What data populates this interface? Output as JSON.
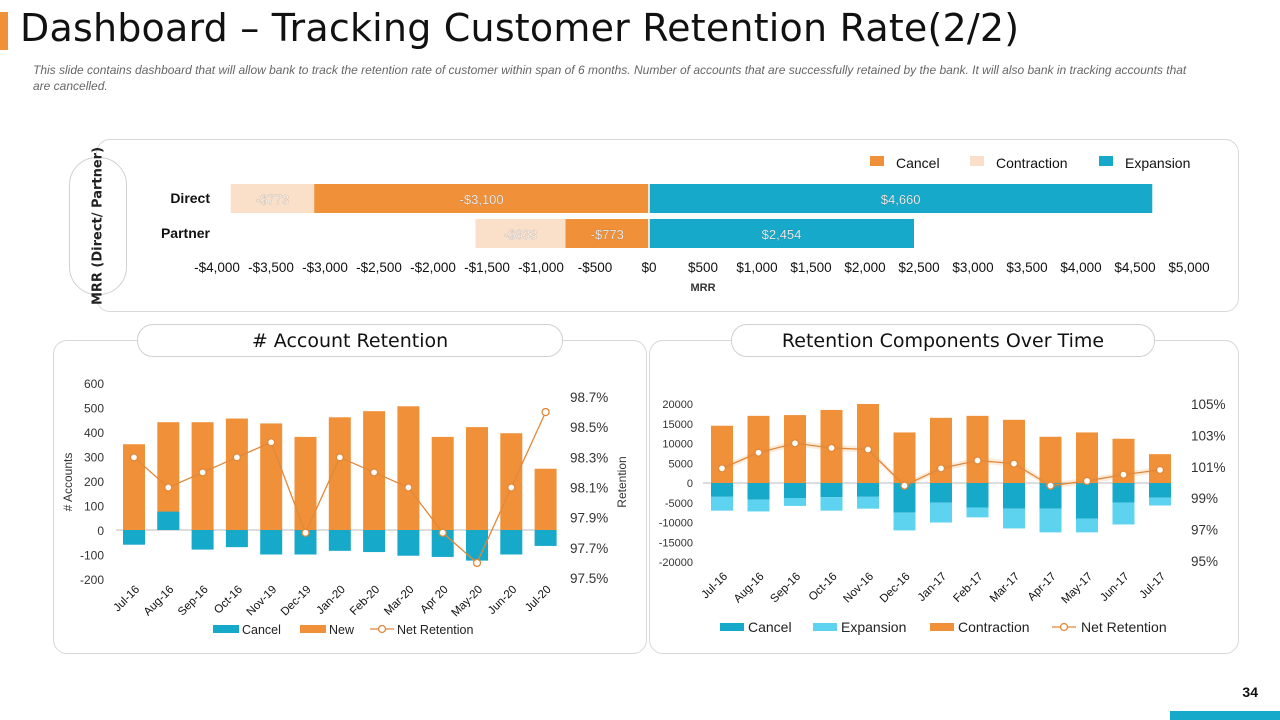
{
  "header": {
    "title": "Dashboard – Tracking Customer Retention Rate(2/2)",
    "subtitle": "This slide contains dashboard that will allow bank to track the retention  rate of customer within  span of 6 months. Number of accounts that are successfully retained by the bank. It will also bank in tracking accounts that are cancelled.",
    "page_number": "34"
  },
  "colors": {
    "accent": "#F0913A",
    "cancel": "#17A9C9",
    "expansion": "#5DD3EF",
    "contraction": "#FADFC9",
    "orange": "#F0913A",
    "net_line": "#E0883A"
  },
  "chart_data": [
    {
      "id": "mrr",
      "type": "bar",
      "orientation": "horizontal",
      "stacked": true,
      "title": "",
      "ylabel": "MRR (Direct/ Partner)",
      "xlabel": "MRR",
      "xlim": [
        -4000,
        5000
      ],
      "xticks": [
        "-$4,000",
        "-$3,500",
        "-$3,000",
        "-$2,500",
        "-$2,000",
        "-$1,500",
        "-$1,000",
        "-$500",
        "$0",
        "$500",
        "$1,000",
        "$1,500",
        "$2,000",
        "$2,500",
        "$3,000",
        "$3,500",
        "$4,000",
        "$4,500",
        "$5,000"
      ],
      "categories": [
        "Direct",
        "Partner"
      ],
      "legend": [
        "Cancel",
        "Contraction",
        "Expansion"
      ],
      "legend_position": "top-right",
      "rows": [
        {
          "name": "Direct",
          "segments": [
            {
              "series": "Contraction",
              "from": -3873,
              "to": -3100,
              "value": -773,
              "label": "-$773"
            },
            {
              "series": "Cancel",
              "from": -3100,
              "to": 0,
              "value": -3100,
              "label": "-$3,100"
            },
            {
              "series": "Expansion",
              "from": 0,
              "to": 4660,
              "value": 4660,
              "label": "$4,660"
            }
          ]
        },
        {
          "name": "Partner",
          "segments": [
            {
              "series": "Contraction",
              "from": -1606,
              "to": -773,
              "value": -833,
              "label": "-$833"
            },
            {
              "series": "Cancel",
              "from": -773,
              "to": 0,
              "value": -773,
              "label": "-$773"
            },
            {
              "series": "Expansion",
              "from": 0,
              "to": 2454,
              "value": 2454,
              "label": "$2,454"
            }
          ]
        }
      ]
    },
    {
      "id": "account_retention",
      "type": "bar",
      "title": "# Account Retention",
      "ylabel": "# Accounts",
      "y2label": "Retention",
      "ylim": [
        -200,
        600
      ],
      "yticks": [
        "600",
        "500",
        "400",
        "300",
        "200",
        "100",
        "0",
        "-100",
        "-200"
      ],
      "y2lim": [
        97.5,
        98.7
      ],
      "y2ticks": [
        "98.7%",
        "98.5%",
        "98.3%",
        "98.1%",
        "97.9%",
        "97.7%",
        "97.5%"
      ],
      "categories": [
        "Jul-16",
        "Aug-16",
        "Sep-16",
        "Oct-16",
        "Nov-19",
        "Dec-19",
        "Jan-20",
        "Feb-20",
        "Mar-20",
        "Apr 20",
        "May-20",
        "Jun-20",
        "Jul-20"
      ],
      "series": [
        {
          "name": "Cancel",
          "values": [
            -60,
            75,
            -80,
            -70,
            -100,
            -100,
            -85,
            -90,
            -105,
            -110,
            -125,
            -100,
            -65
          ]
        },
        {
          "name": "New",
          "values": [
            350,
            440,
            440,
            455,
            435,
            380,
            460,
            485,
            505,
            380,
            420,
            395,
            250
          ]
        },
        {
          "name": "Net Retention",
          "values": [
            98.3,
            98.1,
            98.2,
            98.3,
            98.4,
            97.8,
            98.3,
            98.2,
            98.1,
            97.8,
            97.6,
            98.1,
            98.6
          ]
        }
      ],
      "legend": [
        "Cancel",
        "New",
        "Net Retention"
      ],
      "legend_position": "bottom"
    },
    {
      "id": "retention_components",
      "type": "bar",
      "title": "Retention Components Over Time",
      "ylim": [
        -20000,
        20000
      ],
      "yticks": [
        "20000",
        "15000",
        "10000",
        "5000",
        "0",
        "-5000",
        "-10000",
        "-15000",
        "-20000"
      ],
      "y2lim": [
        95,
        105
      ],
      "y2ticks": [
        "105%",
        "103%",
        "101%",
        "99%",
        "97%",
        "95%"
      ],
      "categories": [
        "Jul-16",
        "Aug-16",
        "Sep-16",
        "Oct-16",
        "Nov-16",
        "Dec-16",
        "Jan-17",
        "Feb-17",
        "Mar-17",
        "Apr-17",
        "May-17",
        "Jun-17",
        "Jul-17"
      ],
      "series": [
        {
          "name": "Cancel",
          "values": [
            -3500,
            -4200,
            -3800,
            -3600,
            -3500,
            -7500,
            -5000,
            -6200,
            -6500,
            -6500,
            -9000,
            -5000,
            -3700
          ]
        },
        {
          "name": "Expansion",
          "values": [
            -3500,
            -3000,
            -2000,
            -3400,
            -3000,
            -4500,
            -5000,
            -2500,
            -5000,
            -6000,
            -3500,
            -5500,
            -2000
          ]
        },
        {
          "name": "Contraction",
          "values": [
            14500,
            17000,
            17200,
            18500,
            20000,
            12800,
            16500,
            17000,
            16000,
            11700,
            12800,
            11200,
            7300
          ]
        },
        {
          "name": "Net Retention",
          "values": [
            100.9,
            101.9,
            102.5,
            102.2,
            102.1,
            99.8,
            100.9,
            101.4,
            101.2,
            99.8,
            100.1,
            100.5,
            100.8
          ]
        }
      ],
      "legend": [
        "Cancel",
        "Expansion",
        "Contraction",
        "Net Retention"
      ],
      "legend_position": "bottom"
    }
  ]
}
